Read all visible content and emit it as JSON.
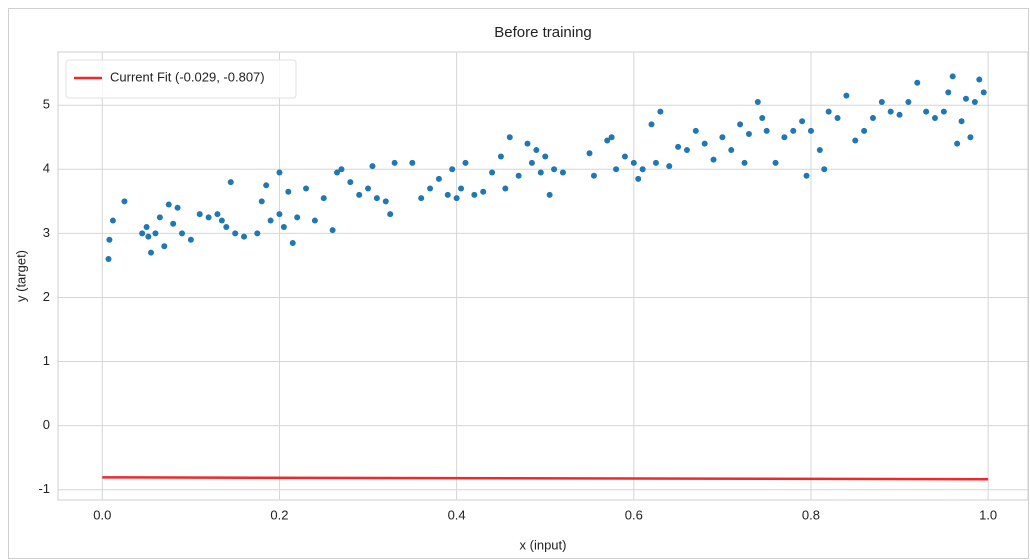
{
  "chart_data": {
    "type": "scatter",
    "title": "Before training",
    "xlabel": "x (input)",
    "ylabel": "y (target)",
    "xlim": [
      -0.05,
      1.045
    ],
    "ylim": [
      -1.16,
      5.83
    ],
    "xticks": [
      {
        "value": 0,
        "label": "0.0"
      },
      0.2,
      0.4,
      0.6,
      0.8,
      {
        "value": 1,
        "label": "1.0"
      }
    ],
    "yticks": [
      -1,
      0,
      1,
      2,
      3,
      4,
      5
    ],
    "grid": true,
    "legend": "upper left",
    "series": [
      {
        "type": "scatter",
        "color": "#1f77b4",
        "x": [
          0.007,
          0.008,
          0.012,
          0.025,
          0.045,
          0.05,
          0.052,
          0.055,
          0.06,
          0.065,
          0.07,
          0.075,
          0.08,
          0.085,
          0.09,
          0.1,
          0.11,
          0.12,
          0.13,
          0.135,
          0.14,
          0.145,
          0.15,
          0.16,
          0.175,
          0.18,
          0.185,
          0.19,
          0.2,
          0.2,
          0.205,
          0.21,
          0.215,
          0.22,
          0.23,
          0.24,
          0.25,
          0.26,
          0.265,
          0.27,
          0.28,
          0.29,
          0.3,
          0.305,
          0.31,
          0.32,
          0.325,
          0.33,
          0.35,
          0.36,
          0.37,
          0.38,
          0.39,
          0.395,
          0.4,
          0.405,
          0.41,
          0.42,
          0.43,
          0.44,
          0.45,
          0.455,
          0.46,
          0.47,
          0.48,
          0.485,
          0.49,
          0.495,
          0.5,
          0.505,
          0.51,
          0.52,
          0.55,
          0.555,
          0.57,
          0.575,
          0.58,
          0.59,
          0.6,
          0.605,
          0.61,
          0.62,
          0.625,
          0.63,
          0.64,
          0.65,
          0.66,
          0.67,
          0.68,
          0.69,
          0.7,
          0.71,
          0.72,
          0.725,
          0.73,
          0.74,
          0.745,
          0.75,
          0.76,
          0.77,
          0.78,
          0.79,
          0.795,
          0.8,
          0.81,
          0.815,
          0.82,
          0.83,
          0.84,
          0.85,
          0.86,
          0.87,
          0.88,
          0.89,
          0.9,
          0.91,
          0.92,
          0.93,
          0.94,
          0.95,
          0.955,
          0.96,
          0.965,
          0.97,
          0.975,
          0.98,
          0.985,
          0.99,
          0.995
        ],
        "values": [
          2.6,
          2.9,
          3.2,
          3.5,
          3.0,
          3.1,
          2.95,
          2.7,
          3.0,
          3.25,
          2.8,
          3.45,
          3.15,
          3.4,
          3.0,
          2.9,
          3.3,
          3.25,
          3.3,
          3.2,
          3.1,
          3.8,
          3.0,
          2.95,
          3.0,
          3.5,
          3.75,
          3.2,
          3.95,
          3.3,
          3.1,
          3.65,
          2.85,
          3.25,
          3.7,
          3.2,
          3.55,
          3.05,
          3.95,
          4.0,
          3.8,
          3.6,
          3.7,
          4.05,
          3.55,
          3.5,
          3.3,
          4.1,
          4.1,
          3.55,
          3.7,
          3.85,
          3.6,
          4.0,
          3.55,
          3.7,
          4.1,
          3.6,
          3.65,
          3.95,
          4.2,
          3.7,
          4.5,
          3.9,
          4.4,
          4.1,
          4.3,
          3.95,
          4.2,
          3.6,
          4.0,
          3.95,
          4.25,
          3.9,
          4.45,
          4.5,
          4.0,
          4.2,
          4.1,
          3.85,
          4.0,
          4.7,
          4.1,
          4.9,
          4.05,
          4.35,
          4.3,
          4.6,
          4.4,
          4.15,
          4.5,
          4.3,
          4.7,
          4.1,
          4.55,
          5.05,
          4.8,
          4.6,
          4.1,
          4.5,
          4.6,
          4.75,
          3.9,
          4.6,
          4.3,
          4.0,
          4.9,
          4.8,
          5.15,
          4.45,
          4.6,
          4.8,
          5.05,
          4.9,
          4.85,
          5.05,
          5.35,
          4.9,
          4.8,
          4.9,
          5.2,
          5.45,
          4.4,
          4.75,
          5.1,
          4.5,
          5.05,
          5.4,
          5.2
        ]
      },
      {
        "type": "line",
        "name": "Current Fit (-0.029, -0.807)",
        "color": "#f0282a",
        "x": [
          0,
          1
        ],
        "values": [
          -0.807,
          -0.836
        ]
      }
    ]
  }
}
